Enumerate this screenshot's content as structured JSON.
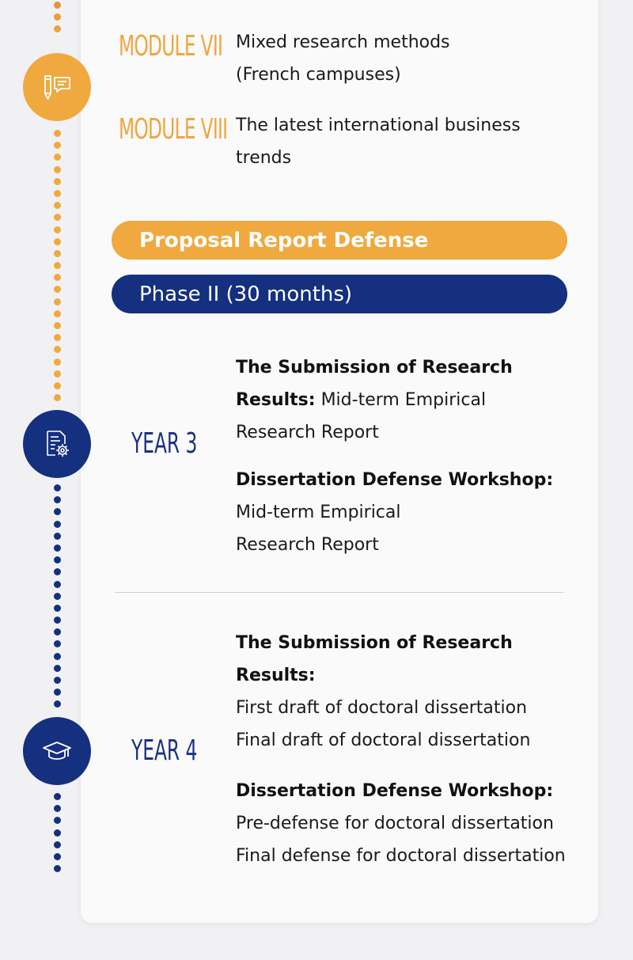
{
  "colors": {
    "orange": "#f0a93f",
    "navy": "#14307f",
    "card": "#fafafb"
  },
  "modules": [
    {
      "label": "MODULE VII",
      "lines": [
        "Mixed research methods",
        "(French campuses)"
      ]
    },
    {
      "label": "MODULE VIII",
      "lines": [
        "The latest international business",
        "trends"
      ]
    }
  ],
  "milestone": "Proposal Report Defense",
  "phase": "Phase II (30 months)",
  "year3": {
    "label": "YEAR 3",
    "submission_heading_1": "The Submission of Research",
    "submission_heading_2": "Results:",
    "submission_text_1": " Mid-term Empirical",
    "submission_text_2": "Research Report",
    "workshop_heading": "Dissertation Defense Workshop:",
    "workshop_lines": [
      "Mid-term Empirical",
      "Research Report"
    ]
  },
  "year4": {
    "label": "YEAR 4",
    "submission_heading_1": "The Submission of Research",
    "submission_heading_2": "Results:",
    "submission_lines": [
      "First draft of doctoral dissertation",
      "Final draft of doctoral dissertation"
    ],
    "workshop_heading": "Dissertation Defense Workshop:",
    "workshop_lines": [
      "Pre-defense for doctoral dissertation",
      "Final defense for doctoral dissertation"
    ]
  },
  "icons": [
    "pencil-chat-icon",
    "certificate-gear-icon",
    "graduation-cap-icon"
  ]
}
